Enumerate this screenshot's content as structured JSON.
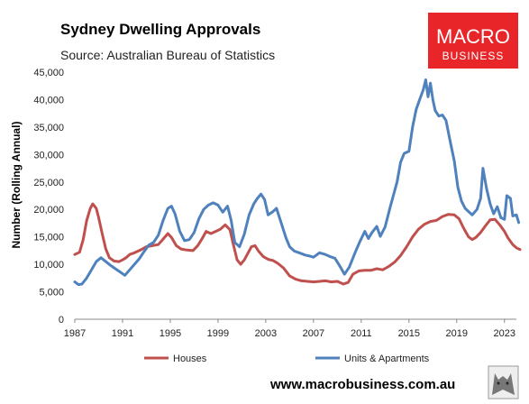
{
  "brand": {
    "logo_line1": "MACRO",
    "logo_line2": "BUSINESS",
    "logo_bg": "#e8262a",
    "url": "www.macrobusiness.com.au"
  },
  "chart_data": {
    "type": "line",
    "title": "Sydney Dwelling Approvals",
    "subtitle": "Source: Australian Bureau of Statistics",
    "ylabel": "Number (Rolling Annual)",
    "xlabel": "",
    "xlim": [
      1987,
      2024
    ],
    "ylim": [
      0,
      45000
    ],
    "x_ticks": [
      "1987",
      "1991",
      "1995",
      "1999",
      "2003",
      "2007",
      "2011",
      "2015",
      "2019",
      "2023"
    ],
    "x_tick_values": [
      1987,
      1991,
      1995,
      1999,
      2003,
      2007,
      2011,
      2015,
      2019,
      2023
    ],
    "y_ticks": [
      "0",
      "5,000",
      "10,000",
      "15,000",
      "20,000",
      "25,000",
      "30,000",
      "35,000",
      "40,000",
      "45,000"
    ],
    "y_tick_values": [
      0,
      5000,
      10000,
      15000,
      20000,
      25000,
      30000,
      35000,
      40000,
      45000
    ],
    "grid": false,
    "legend_position": "bottom",
    "series": [
      {
        "name": "Houses",
        "color": "#c0504d",
        "points": [
          [
            1987.0,
            11800
          ],
          [
            1987.4,
            12200
          ],
          [
            1987.7,
            14500
          ],
          [
            1988.0,
            18000
          ],
          [
            1988.3,
            20200
          ],
          [
            1988.5,
            21000
          ],
          [
            1988.8,
            20200
          ],
          [
            1989.0,
            18500
          ],
          [
            1989.3,
            15500
          ],
          [
            1989.6,
            12800
          ],
          [
            1989.9,
            11200
          ],
          [
            1990.3,
            10600
          ],
          [
            1990.7,
            10500
          ],
          [
            1991.0,
            10800
          ],
          [
            1991.3,
            11200
          ],
          [
            1991.6,
            11800
          ],
          [
            1992.0,
            12100
          ],
          [
            1992.5,
            12600
          ],
          [
            1993.0,
            13200
          ],
          [
            1993.5,
            13400
          ],
          [
            1994.0,
            13600
          ],
          [
            1994.4,
            14600
          ],
          [
            1994.8,
            15600
          ],
          [
            1995.1,
            14900
          ],
          [
            1995.5,
            13400
          ],
          [
            1995.9,
            12800
          ],
          [
            1996.4,
            12600
          ],
          [
            1996.9,
            12500
          ],
          [
            1997.3,
            13400
          ],
          [
            1997.7,
            14800
          ],
          [
            1998.0,
            16000
          ],
          [
            1998.4,
            15600
          ],
          [
            1998.8,
            16000
          ],
          [
            1999.2,
            16400
          ],
          [
            1999.6,
            17200
          ],
          [
            2000.0,
            16300
          ],
          [
            2000.3,
            13500
          ],
          [
            2000.6,
            10800
          ],
          [
            2000.9,
            10000
          ],
          [
            2001.2,
            10800
          ],
          [
            2001.5,
            12000
          ],
          [
            2001.8,
            13200
          ],
          [
            2002.1,
            13400
          ],
          [
            2002.4,
            12400
          ],
          [
            2002.8,
            11400
          ],
          [
            2003.2,
            10900
          ],
          [
            2003.6,
            10700
          ],
          [
            2004.0,
            10200
          ],
          [
            2004.5,
            9300
          ],
          [
            2005.0,
            7900
          ],
          [
            2005.5,
            7300
          ],
          [
            2006.0,
            7000
          ],
          [
            2006.5,
            6900
          ],
          [
            2007.0,
            6800
          ],
          [
            2007.5,
            6900
          ],
          [
            2008.0,
            7000
          ],
          [
            2008.5,
            6800
          ],
          [
            2009.0,
            6900
          ],
          [
            2009.5,
            6400
          ],
          [
            2009.9,
            6700
          ],
          [
            2010.3,
            8200
          ],
          [
            2010.8,
            8800
          ],
          [
            2011.3,
            8900
          ],
          [
            2011.8,
            8900
          ],
          [
            2012.3,
            9200
          ],
          [
            2012.8,
            9000
          ],
          [
            2013.3,
            9600
          ],
          [
            2013.8,
            10400
          ],
          [
            2014.3,
            11600
          ],
          [
            2014.8,
            13200
          ],
          [
            2015.3,
            15000
          ],
          [
            2015.8,
            16400
          ],
          [
            2016.3,
            17300
          ],
          [
            2016.8,
            17800
          ],
          [
            2017.3,
            18000
          ],
          [
            2017.8,
            18700
          ],
          [
            2018.3,
            19100
          ],
          [
            2018.8,
            19000
          ],
          [
            2019.2,
            18300
          ],
          [
            2019.6,
            16500
          ],
          [
            2020.0,
            15000
          ],
          [
            2020.3,
            14500
          ],
          [
            2020.6,
            14900
          ],
          [
            2021.0,
            15800
          ],
          [
            2021.4,
            17000
          ],
          [
            2021.8,
            18100
          ],
          [
            2022.2,
            18200
          ],
          [
            2022.6,
            17200
          ],
          [
            2023.0,
            16000
          ],
          [
            2023.3,
            14800
          ],
          [
            2023.7,
            13600
          ],
          [
            2024.0,
            13000
          ],
          [
            2024.3,
            12700
          ]
        ]
      },
      {
        "name": "Units & Apartments",
        "color": "#4f81bd",
        "points": [
          [
            1987.0,
            6800
          ],
          [
            1987.3,
            6300
          ],
          [
            1987.6,
            6400
          ],
          [
            1988.0,
            7500
          ],
          [
            1988.4,
            9000
          ],
          [
            1988.8,
            10500
          ],
          [
            1989.2,
            11200
          ],
          [
            1989.6,
            10500
          ],
          [
            1990.0,
            9800
          ],
          [
            1990.4,
            9200
          ],
          [
            1990.8,
            8600
          ],
          [
            1991.2,
            8000
          ],
          [
            1991.6,
            9000
          ],
          [
            1992.0,
            10000
          ],
          [
            1992.4,
            11000
          ],
          [
            1992.8,
            12300
          ],
          [
            1993.2,
            13500
          ],
          [
            1993.6,
            14000
          ],
          [
            1994.0,
            15300
          ],
          [
            1994.4,
            18000
          ],
          [
            1994.8,
            20200
          ],
          [
            1995.1,
            20600
          ],
          [
            1995.4,
            19200
          ],
          [
            1995.8,
            16000
          ],
          [
            1996.2,
            14300
          ],
          [
            1996.6,
            14500
          ],
          [
            1997.0,
            15800
          ],
          [
            1997.4,
            18300
          ],
          [
            1997.8,
            20000
          ],
          [
            1998.2,
            20800
          ],
          [
            1998.6,
            21200
          ],
          [
            1999.0,
            20800
          ],
          [
            1999.4,
            19500
          ],
          [
            1999.8,
            20600
          ],
          [
            2000.1,
            18000
          ],
          [
            2000.4,
            14000
          ],
          [
            2000.8,
            13200
          ],
          [
            2001.2,
            15500
          ],
          [
            2001.6,
            19000
          ],
          [
            2002.0,
            21000
          ],
          [
            2002.3,
            22000
          ],
          [
            2002.6,
            22800
          ],
          [
            2002.9,
            21800
          ],
          [
            2003.2,
            19000
          ],
          [
            2003.6,
            19600
          ],
          [
            2003.9,
            20200
          ],
          [
            2004.3,
            17500
          ],
          [
            2004.7,
            14800
          ],
          [
            2005.0,
            13200
          ],
          [
            2005.4,
            12400
          ],
          [
            2005.8,
            12100
          ],
          [
            2006.3,
            11700
          ],
          [
            2006.7,
            11500
          ],
          [
            2007.0,
            11300
          ],
          [
            2007.5,
            12100
          ],
          [
            2008.0,
            11800
          ],
          [
            2008.4,
            11400
          ],
          [
            2008.8,
            11100
          ],
          [
            2009.2,
            9700
          ],
          [
            2009.6,
            8200
          ],
          [
            2010.0,
            9500
          ],
          [
            2010.5,
            12200
          ],
          [
            2010.9,
            14200
          ],
          [
            2011.3,
            16000
          ],
          [
            2011.6,
            14700
          ],
          [
            2011.9,
            15800
          ],
          [
            2012.3,
            16900
          ],
          [
            2012.6,
            15100
          ],
          [
            2013.0,
            16800
          ],
          [
            2013.4,
            20200
          ],
          [
            2013.7,
            22600
          ],
          [
            2014.0,
            25000
          ],
          [
            2014.3,
            28600
          ],
          [
            2014.6,
            30200
          ],
          [
            2015.0,
            30600
          ],
          [
            2015.3,
            35000
          ],
          [
            2015.6,
            38200
          ],
          [
            2015.9,
            40000
          ],
          [
            2016.2,
            41800
          ],
          [
            2016.4,
            43600
          ],
          [
            2016.6,
            40500
          ],
          [
            2016.8,
            43000
          ],
          [
            2017.0,
            40000
          ],
          [
            2017.2,
            38000
          ],
          [
            2017.5,
            37000
          ],
          [
            2017.8,
            37200
          ],
          [
            2018.1,
            36200
          ],
          [
            2018.4,
            33000
          ],
          [
            2018.8,
            28800
          ],
          [
            2019.1,
            24000
          ],
          [
            2019.4,
            21500
          ],
          [
            2019.7,
            20200
          ],
          [
            2020.0,
            19600
          ],
          [
            2020.3,
            19000
          ],
          [
            2020.7,
            20000
          ],
          [
            2021.0,
            22000
          ],
          [
            2021.2,
            27500
          ],
          [
            2021.5,
            23800
          ],
          [
            2021.8,
            21000
          ],
          [
            2022.1,
            19200
          ],
          [
            2022.4,
            20500
          ],
          [
            2022.7,
            18500
          ],
          [
            2023.0,
            18200
          ],
          [
            2023.2,
            22500
          ],
          [
            2023.5,
            22000
          ],
          [
            2023.7,
            18800
          ],
          [
            2024.0,
            19000
          ],
          [
            2024.2,
            17600
          ]
        ]
      }
    ]
  }
}
